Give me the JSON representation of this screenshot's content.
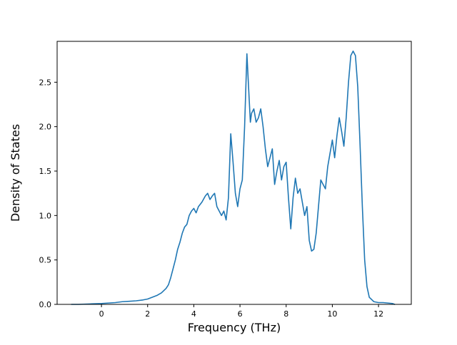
{
  "chart_data": {
    "type": "line",
    "title": "",
    "xlabel": "Frequency (THz)",
    "ylabel": "Density of States",
    "xlim": [
      -1.92,
      13.42
    ],
    "ylim": [
      0,
      2.96
    ],
    "xticks": [
      0,
      2,
      4,
      6,
      8,
      10,
      12
    ],
    "xtick_labels": [
      "0",
      "2",
      "4",
      "6",
      "8",
      "10",
      "12"
    ],
    "yticks": [
      0.0,
      0.5,
      1.0,
      1.5,
      2.0,
      2.5
    ],
    "ytick_labels": [
      "0.0",
      "0.5",
      "1.0",
      "1.5",
      "2.0",
      "2.5"
    ],
    "grid": false,
    "legend": "none",
    "line_color": "#1f77b4",
    "line_width": 1.6,
    "spine_color": "#000000",
    "background_color": "#ffffff",
    "x": [
      -1.3,
      -1.0,
      -0.5,
      0.0,
      0.3,
      0.6,
      0.9,
      1.2,
      1.5,
      1.8,
      2.0,
      2.2,
      2.4,
      2.6,
      2.8,
      2.9,
      3.0,
      3.1,
      3.2,
      3.3,
      3.4,
      3.5,
      3.6,
      3.7,
      3.8,
      3.9,
      4.0,
      4.1,
      4.2,
      4.35,
      4.5,
      4.6,
      4.7,
      4.8,
      4.9,
      5.0,
      5.1,
      5.2,
      5.3,
      5.4,
      5.5,
      5.6,
      5.7,
      5.8,
      5.9,
      6.0,
      6.1,
      6.2,
      6.3,
      6.4,
      6.45,
      6.5,
      6.6,
      6.7,
      6.8,
      6.9,
      7.0,
      7.1,
      7.2,
      7.3,
      7.4,
      7.5,
      7.6,
      7.7,
      7.8,
      7.9,
      8.0,
      8.1,
      8.2,
      8.3,
      8.4,
      8.5,
      8.6,
      8.7,
      8.8,
      8.9,
      9.0,
      9.1,
      9.2,
      9.3,
      9.4,
      9.5,
      9.6,
      9.7,
      9.8,
      9.9,
      10.0,
      10.1,
      10.2,
      10.3,
      10.4,
      10.5,
      10.6,
      10.7,
      10.8,
      10.9,
      11.0,
      11.1,
      11.2,
      11.3,
      11.4,
      11.5,
      11.6,
      11.8,
      12.0,
      12.2,
      12.4,
      12.6,
      12.7
    ],
    "y": [
      0.0,
      0.0,
      0.005,
      0.01,
      0.015,
      0.02,
      0.03,
      0.035,
      0.04,
      0.05,
      0.06,
      0.08,
      0.1,
      0.13,
      0.18,
      0.22,
      0.3,
      0.4,
      0.5,
      0.62,
      0.7,
      0.8,
      0.87,
      0.9,
      1.0,
      1.05,
      1.08,
      1.03,
      1.1,
      1.15,
      1.22,
      1.25,
      1.18,
      1.22,
      1.25,
      1.1,
      1.05,
      1.0,
      1.05,
      0.95,
      1.2,
      1.92,
      1.6,
      1.25,
      1.1,
      1.3,
      1.4,
      2.0,
      2.82,
      2.3,
      2.05,
      2.15,
      2.2,
      2.05,
      2.1,
      2.2,
      2.0,
      1.75,
      1.55,
      1.65,
      1.75,
      1.35,
      1.5,
      1.62,
      1.4,
      1.55,
      1.6,
      1.2,
      0.85,
      1.2,
      1.42,
      1.25,
      1.3,
      1.15,
      1.0,
      1.1,
      0.72,
      0.6,
      0.62,
      0.8,
      1.1,
      1.4,
      1.35,
      1.3,
      1.55,
      1.7,
      1.85,
      1.65,
      1.9,
      2.1,
      1.95,
      1.78,
      2.1,
      2.5,
      2.8,
      2.85,
      2.8,
      2.45,
      1.8,
      1.1,
      0.5,
      0.2,
      0.08,
      0.03,
      0.02,
      0.02,
      0.015,
      0.01,
      0.0
    ]
  }
}
